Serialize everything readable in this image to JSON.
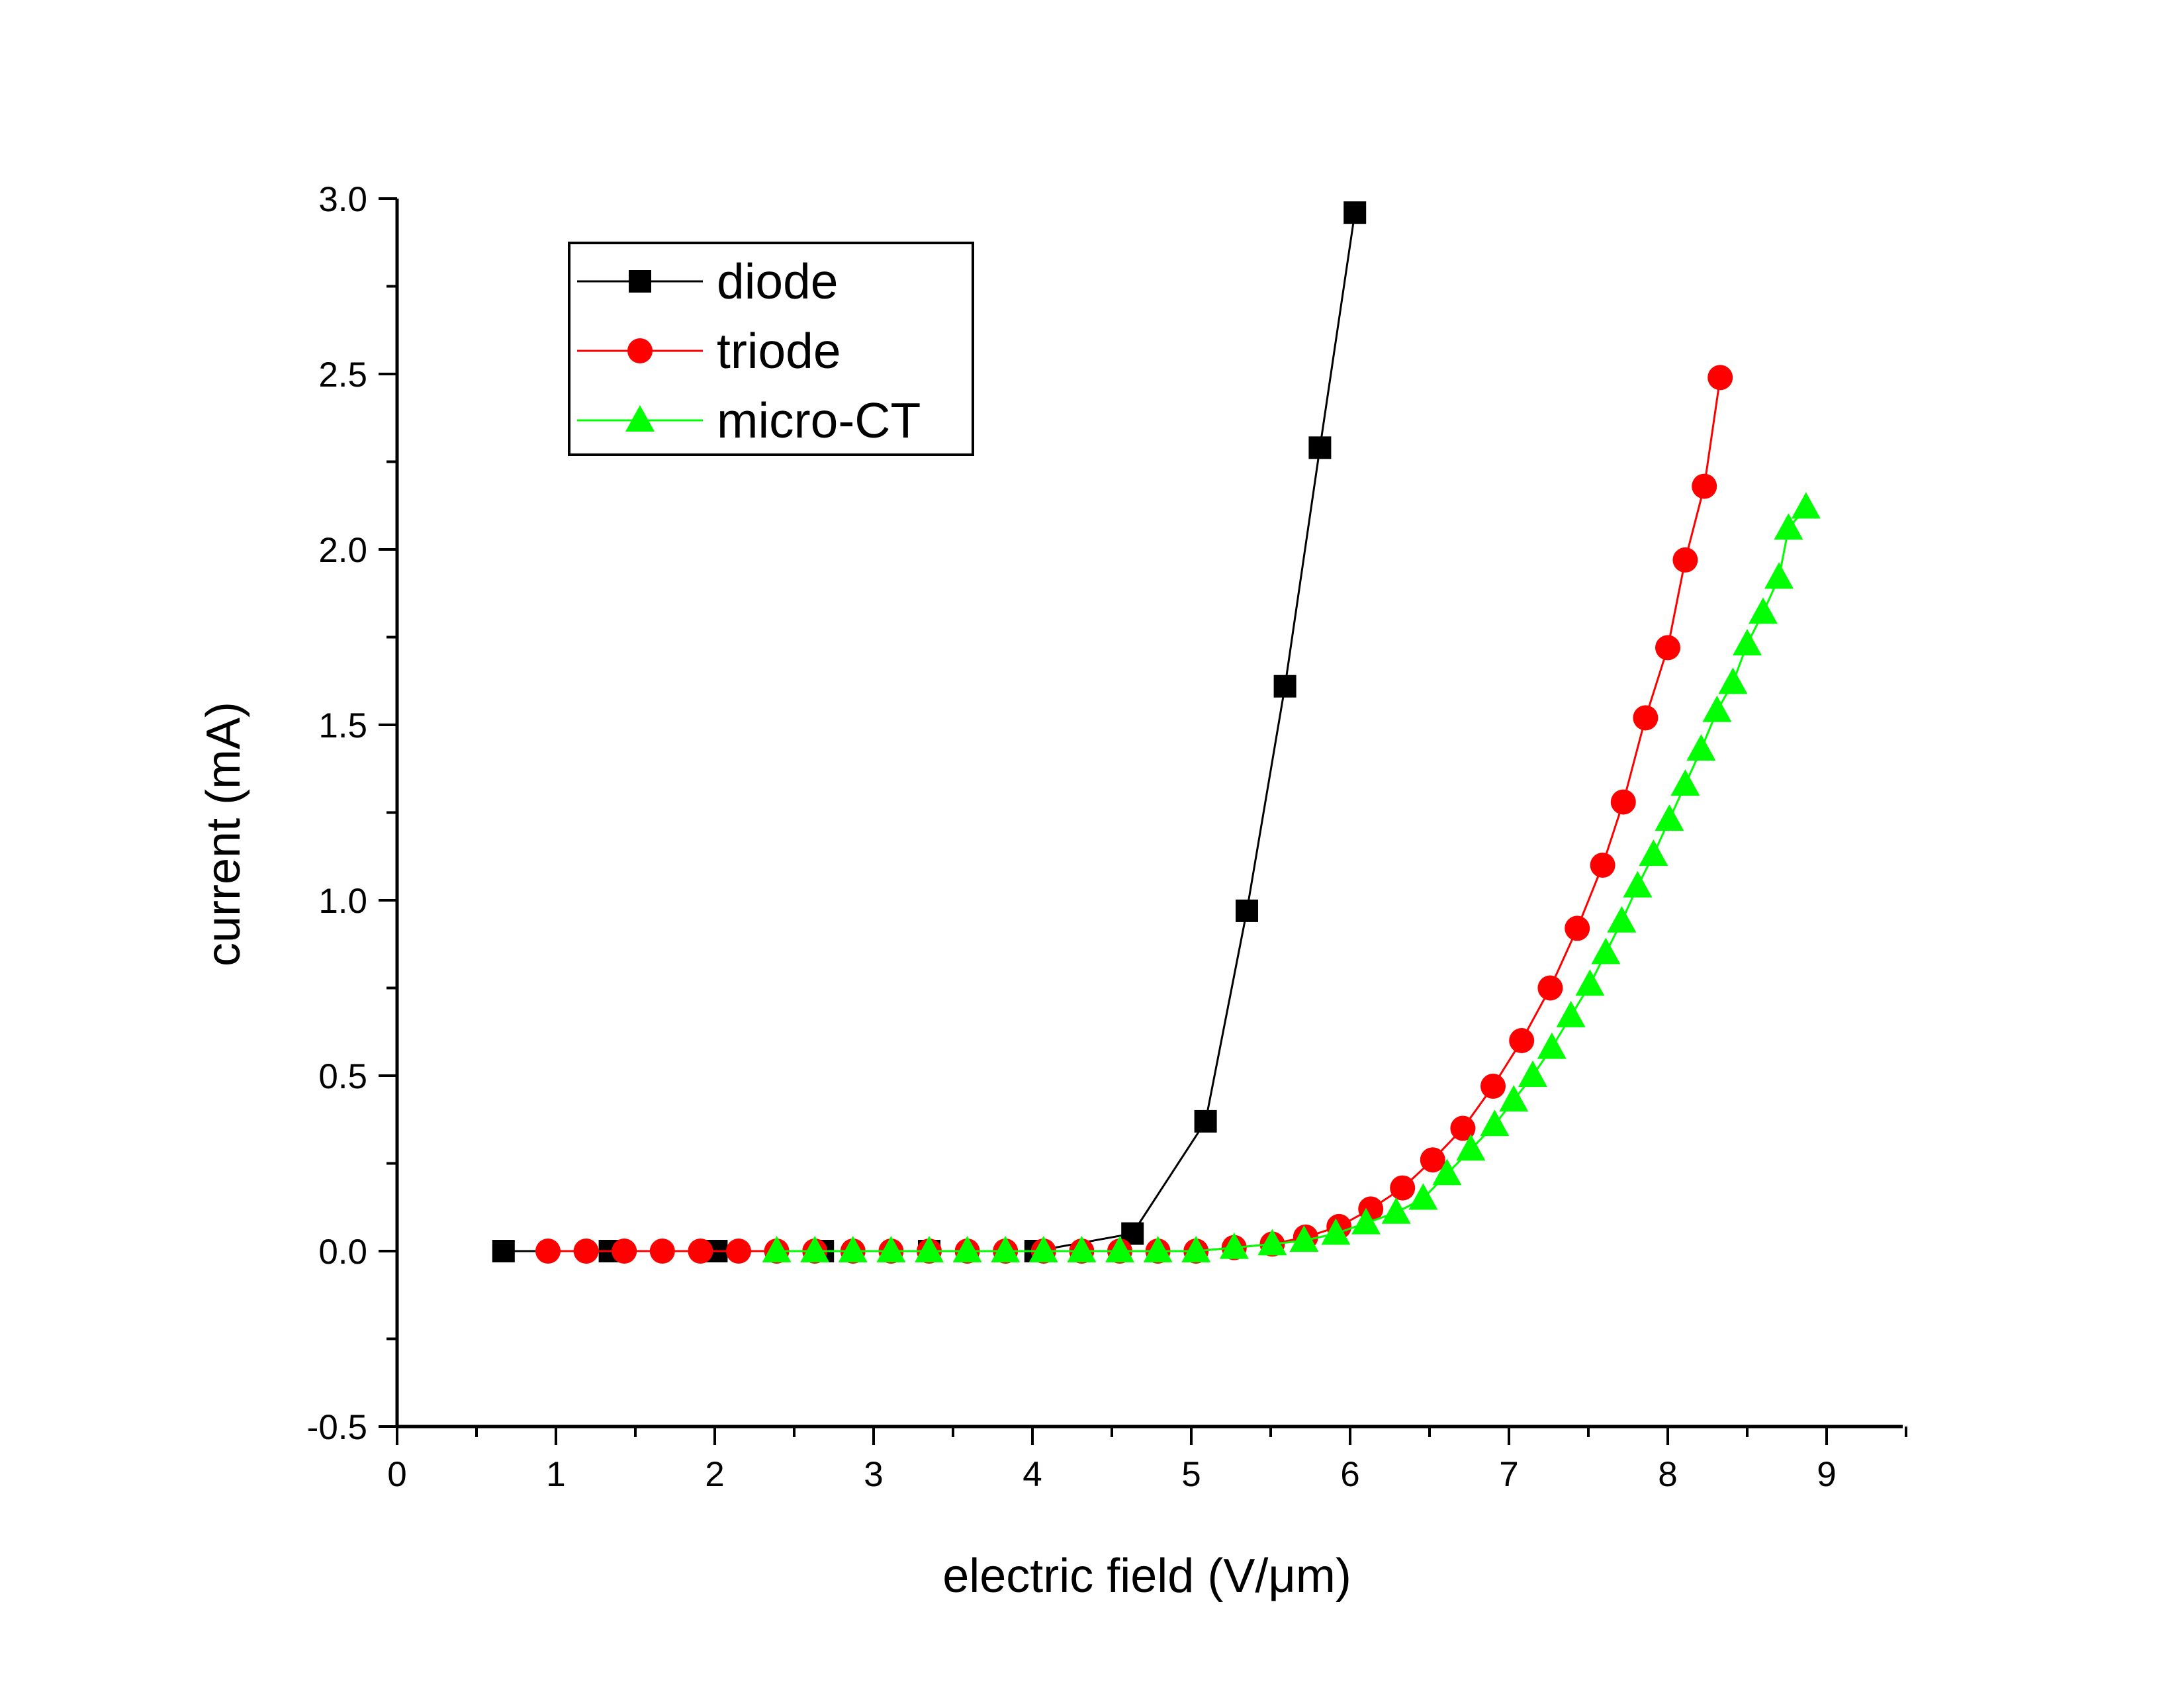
{
  "chart_data": {
    "type": "line",
    "title": "",
    "xlabel": "electric field (V/μm)",
    "ylabel": "current (mA)",
    "xlim": [
      0,
      9.6
    ],
    "ylim": [
      -0.5,
      3.0
    ],
    "xticks": [
      "0",
      "1",
      "2",
      "3",
      "4",
      "5",
      "6",
      "7",
      "8",
      "9"
    ],
    "yticks": [
      "-0.5",
      "0.0",
      "0.5",
      "1.0",
      "1.5",
      "2.0",
      "2.5",
      "3.0"
    ],
    "grid": false,
    "legend_position": "top-left",
    "series": [
      {
        "name": "diode",
        "marker": "square",
        "color": "#000000",
        "x": [
          0.67,
          1.34,
          2.01,
          2.68,
          3.35,
          4.02,
          4.63,
          5.09,
          5.35,
          5.59,
          5.81,
          6.03
        ],
        "y": [
          0.0,
          0.0,
          0.0,
          0.0,
          0.0,
          0.0,
          0.05,
          0.37,
          0.97,
          1.61,
          2.29,
          2.96
        ]
      },
      {
        "name": "triode",
        "marker": "circle",
        "color": "#ff0000",
        "x": [
          0.95,
          1.19,
          1.43,
          1.67,
          1.91,
          2.15,
          2.39,
          2.63,
          2.87,
          3.11,
          3.35,
          3.59,
          3.83,
          4.07,
          4.31,
          4.55,
          4.79,
          5.03,
          5.27,
          5.51,
          5.72,
          5.93,
          6.13,
          6.33,
          6.52,
          6.71,
          6.9,
          7.08,
          7.26,
          7.43,
          7.59,
          7.72,
          7.86,
          8.0,
          8.11,
          8.23,
          8.33
        ],
        "y": [
          0.0,
          0.0,
          0.0,
          0.0,
          0.0,
          0.0,
          0.0,
          0.0,
          0.0,
          0.0,
          0.0,
          0.0,
          0.0,
          0.0,
          0.0,
          0.0,
          0.0,
          0.0,
          0.01,
          0.02,
          0.04,
          0.07,
          0.12,
          0.18,
          0.26,
          0.35,
          0.47,
          0.6,
          0.75,
          0.92,
          1.1,
          1.28,
          1.52,
          1.72,
          1.97,
          2.18,
          2.49
        ]
      },
      {
        "name": "micro-CT",
        "marker": "triangle",
        "color": "#00ff00",
        "x": [
          2.39,
          2.63,
          2.87,
          3.11,
          3.35,
          3.59,
          3.83,
          4.07,
          4.31,
          4.55,
          4.79,
          5.03,
          5.27,
          5.51,
          5.71,
          5.91,
          6.1,
          6.29,
          6.46,
          6.61,
          6.76,
          6.91,
          7.03,
          7.15,
          7.27,
          7.39,
          7.51,
          7.61,
          7.71,
          7.81,
          7.91,
          8.01,
          8.11,
          8.21,
          8.31,
          8.41,
          8.5,
          8.6,
          8.7,
          8.76,
          8.87
        ],
        "y": [
          0.0,
          0.0,
          0.0,
          0.0,
          0.0,
          0.0,
          0.0,
          0.0,
          0.0,
          0.0,
          0.0,
          0.0,
          0.01,
          0.02,
          0.03,
          0.05,
          0.08,
          0.11,
          0.15,
          0.22,
          0.29,
          0.36,
          0.43,
          0.5,
          0.58,
          0.67,
          0.76,
          0.85,
          0.94,
          1.04,
          1.13,
          1.23,
          1.33,
          1.43,
          1.54,
          1.62,
          1.73,
          1.82,
          1.92,
          2.06,
          2.12
        ]
      }
    ]
  }
}
